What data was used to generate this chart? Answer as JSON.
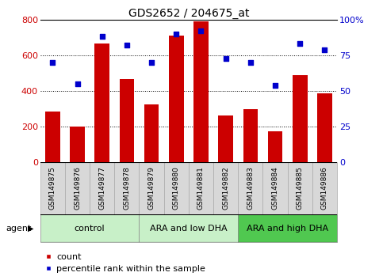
{
  "title": "GDS2652 / 204675_at",
  "samples": [
    "GSM149875",
    "GSM149876",
    "GSM149877",
    "GSM149878",
    "GSM149879",
    "GSM149880",
    "GSM149881",
    "GSM149882",
    "GSM149883",
    "GSM149884",
    "GSM149885",
    "GSM149886"
  ],
  "counts": [
    285,
    200,
    665,
    465,
    325,
    710,
    790,
    265,
    300,
    175,
    490,
    385
  ],
  "percentiles": [
    70,
    55,
    88,
    82,
    70,
    90,
    92,
    73,
    70,
    54,
    83,
    79
  ],
  "groups": [
    {
      "label": "control",
      "start": 0,
      "end": 3,
      "color": "#c8f0c8"
    },
    {
      "label": "ARA and low DHA",
      "start": 4,
      "end": 7,
      "color": "#c8f0c8"
    },
    {
      "label": "ARA and high DHA",
      "start": 8,
      "end": 11,
      "color": "#50c850"
    }
  ],
  "bar_color": "#cc0000",
  "dot_color": "#0000cc",
  "left_ylim": [
    0,
    800
  ],
  "right_ylim": [
    0,
    100
  ],
  "left_yticks": [
    0,
    200,
    400,
    600,
    800
  ],
  "right_yticks": [
    0,
    25,
    50,
    75,
    100
  ],
  "right_yticklabels": [
    "0",
    "25",
    "50",
    "75",
    "100%"
  ],
  "left_ylabel_color": "#cc0000",
  "right_ylabel_color": "#0000cc",
  "legend_count_label": "count",
  "legend_pct_label": "percentile rank within the sample",
  "agent_label": "agent",
  "xtick_bg_color": "#d8d8d8",
  "xtick_border_color": "#aaaaaa",
  "title_fontsize": 10,
  "tick_fontsize": 7,
  "xtick_fontsize": 6.5,
  "group_fontsize": 8,
  "legend_fontsize": 8
}
